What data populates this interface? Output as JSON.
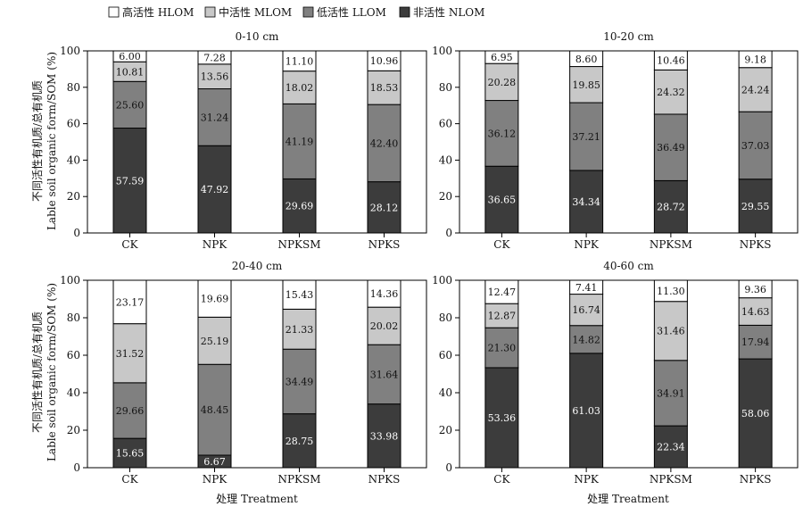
{
  "legend": [
    {
      "label": "高活性 HLOM",
      "color": "#ffffff"
    },
    {
      "label": "中活性 MLOM",
      "color": "#c8c8c8"
    },
    {
      "label": "低活性 LLOM",
      "color": "#808080"
    },
    {
      "label": "非活性 NLOM",
      "color": "#3c3c3c"
    }
  ],
  "ylabel_cn": "不同活性有机质/总有机质",
  "ylabel_en": "Lable soil organic form/SOM (%)",
  "xlabel": "处理 Treatment",
  "chart_data": [
    {
      "type": "bar",
      "stacked": true,
      "title": "0-10 cm",
      "categories": [
        "CK",
        "NPK",
        "NPKSM",
        "NPKS"
      ],
      "ylim": [
        0,
        100
      ],
      "yticks": [
        0,
        20,
        40,
        60,
        80,
        100
      ],
      "series": [
        {
          "name": "非活性 NLOM",
          "values": [
            57.59,
            47.92,
            29.69,
            28.12
          ]
        },
        {
          "name": "低活性 LLOM",
          "values": [
            25.6,
            31.24,
            41.19,
            42.4
          ]
        },
        {
          "name": "中活性 MLOM",
          "values": [
            10.81,
            13.56,
            18.02,
            18.53
          ]
        },
        {
          "name": "高活性 HLOM",
          "values": [
            6.0,
            7.28,
            11.1,
            10.96
          ]
        }
      ]
    },
    {
      "type": "bar",
      "stacked": true,
      "title": "10-20 cm",
      "categories": [
        "CK",
        "NPK",
        "NPKSM",
        "NPKS"
      ],
      "ylim": [
        0,
        100
      ],
      "yticks": [
        0,
        20,
        40,
        60,
        80,
        100
      ],
      "series": [
        {
          "name": "非活性 NLOM",
          "values": [
            36.65,
            34.34,
            28.72,
            29.55
          ]
        },
        {
          "name": "低活性 LLOM",
          "values": [
            36.12,
            37.21,
            36.49,
            37.03
          ]
        },
        {
          "name": "中活性 MLOM",
          "values": [
            20.28,
            19.85,
            24.32,
            24.24
          ]
        },
        {
          "name": "高活性 HLOM",
          "values": [
            6.95,
            8.6,
            10.46,
            9.18
          ]
        }
      ]
    },
    {
      "type": "bar",
      "stacked": true,
      "title": "20-40 cm",
      "categories": [
        "CK",
        "NPK",
        "NPKSM",
        "NPKS"
      ],
      "ylim": [
        0,
        100
      ],
      "yticks": [
        0,
        20,
        40,
        60,
        80,
        100
      ],
      "series": [
        {
          "name": "非活性 NLOM",
          "values": [
            15.65,
            6.67,
            28.75,
            33.98
          ]
        },
        {
          "name": "低活性 LLOM",
          "values": [
            29.66,
            48.45,
            34.49,
            31.64
          ]
        },
        {
          "name": "中活性 MLOM",
          "values": [
            31.52,
            25.19,
            21.33,
            20.02
          ]
        },
        {
          "name": "高活性 HLOM",
          "values": [
            23.17,
            19.69,
            15.43,
            14.36
          ]
        }
      ]
    },
    {
      "type": "bar",
      "stacked": true,
      "title": "40-60 cm",
      "categories": [
        "CK",
        "NPK",
        "NPKSM",
        "NPKS"
      ],
      "ylim": [
        0,
        100
      ],
      "yticks": [
        0,
        20,
        40,
        60,
        80,
        100
      ],
      "series": [
        {
          "name": "非活性 NLOM",
          "values": [
            53.36,
            61.03,
            22.34,
            58.06
          ]
        },
        {
          "name": "低活性 LLOM",
          "values": [
            21.3,
            14.82,
            34.91,
            17.94
          ]
        },
        {
          "name": "中活性 MLOM",
          "values": [
            12.87,
            16.74,
            31.46,
            14.63
          ]
        },
        {
          "name": "高活性 HLOM",
          "values": [
            12.47,
            7.41,
            11.3,
            9.36
          ]
        }
      ]
    }
  ]
}
